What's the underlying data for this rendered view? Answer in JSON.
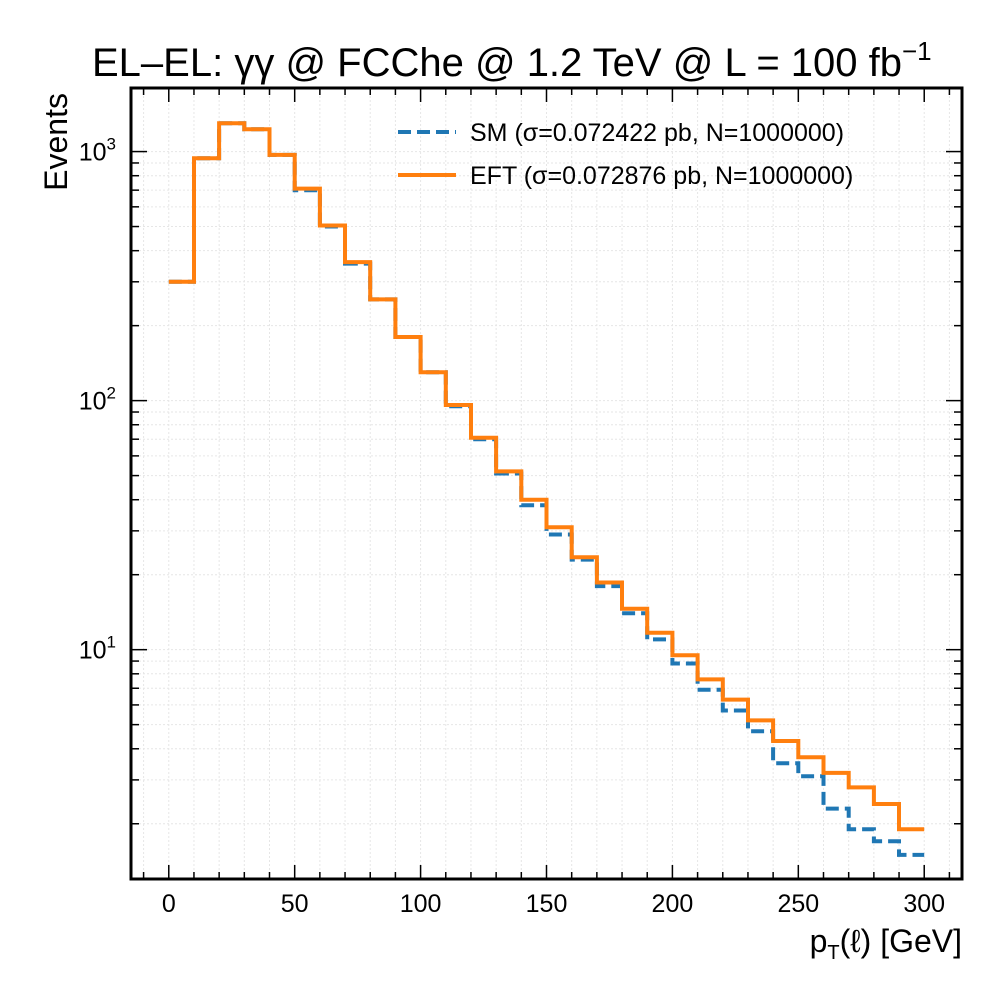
{
  "chart_data": {
    "type": "line",
    "title": "EL–EL: γγ @ FCChe @ 1.2 TeV @ L = 100 fb",
    "title_superscript": "−1",
    "xlabel": "p",
    "xlabel_subscript": "T",
    "xlabel_rest": "(ℓ) [GeV]",
    "ylabel": "Events",
    "xlim": [
      -15,
      315
    ],
    "ylim": [
      1.2,
      1800
    ],
    "yscale": "log",
    "grid": true,
    "legend_position": "top-right",
    "x_ticks": [
      0,
      50,
      100,
      150,
      200,
      250,
      300
    ],
    "x_tick_labels": [
      "0",
      "50",
      "100",
      "150",
      "200",
      "250",
      "300"
    ],
    "y_ticks": [
      {
        "value": 10,
        "base": "10",
        "exp": "1"
      },
      {
        "value": 100,
        "base": "10",
        "exp": "2"
      },
      {
        "value": 1000,
        "base": "10",
        "exp": "3"
      }
    ],
    "bin_edges": [
      0,
      10,
      20,
      30,
      40,
      50,
      60,
      70,
      80,
      90,
      100,
      110,
      120,
      130,
      140,
      150,
      160,
      170,
      180,
      190,
      200,
      210,
      220,
      230,
      240,
      250,
      260,
      270,
      280,
      290,
      300
    ],
    "series": [
      {
        "name": "SM (σ=0.072422 pb, N=1000000)",
        "color": "#1f77b4",
        "style": "dashed",
        "values": [
          300,
          940,
          1300,
          1230,
          970,
          700,
          500,
          355,
          255,
          180,
          130,
          95,
          70,
          51,
          38,
          29,
          23,
          18,
          14,
          11,
          8.8,
          6.9,
          5.7,
          4.7,
          3.5,
          3.1,
          2.3,
          1.9,
          1.7,
          1.5
        ]
      },
      {
        "name": "EFT (σ=0.072876 pb, N=1000000)",
        "color": "#ff7f0e",
        "style": "solid",
        "values": [
          300,
          940,
          1300,
          1230,
          970,
          710,
          505,
          360,
          255,
          180,
          130,
          96,
          71,
          52,
          40,
          31,
          23.5,
          18.6,
          14.6,
          11.7,
          9.5,
          7.6,
          6.3,
          5.2,
          4.3,
          3.7,
          3.2,
          2.8,
          2.4,
          1.9
        ]
      }
    ]
  }
}
